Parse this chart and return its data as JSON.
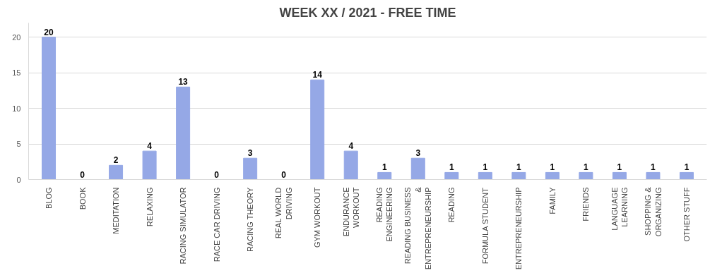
{
  "chart_data": {
    "type": "bar",
    "title": "WEEK XX / 2021 - FREE TIME",
    "categories": [
      "BLOG",
      "BOOK",
      "MEDITATION",
      "RELAXING",
      "RACING SIMULATOR",
      "RACE CAR DRIVING",
      "RACING THEORY",
      "REAL WORLD DRIVING",
      "GYM WORKOUT",
      "ENDURANCE WORKOUT",
      "READING ENGINEERING",
      "READING BUSINESS & ENTREPRENEURSHIP",
      "READING",
      "FORMULA STUDENT",
      "ENTREPRENEURSHIP",
      "FAMILY",
      "FRIENDS",
      "LANGUAGE LEARNING",
      "SHOPPING & ORGANIZING",
      "OTHER STUFF"
    ],
    "values": [
      20,
      0,
      2,
      4,
      13,
      0,
      3,
      0,
      14,
      4,
      1,
      3,
      1,
      1,
      1,
      1,
      1,
      1,
      1,
      1
    ],
    "color": "#95a8e6",
    "ylim": [
      0,
      22
    ],
    "yticks": [
      0,
      5,
      10,
      15,
      20
    ],
    "grid": "y",
    "data_labels": true
  }
}
